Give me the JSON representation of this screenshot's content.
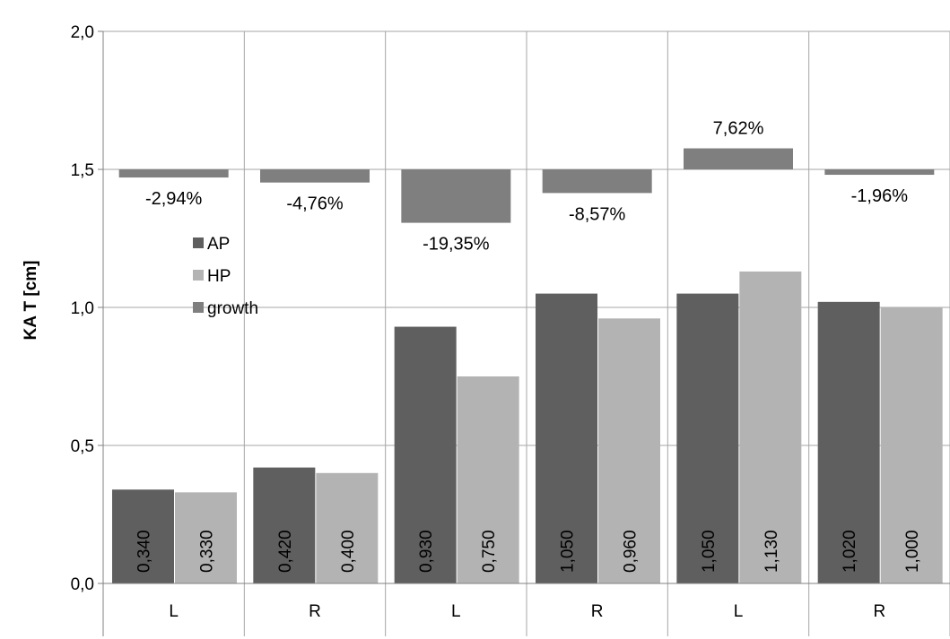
{
  "chart_data": {
    "type": "bar",
    "title": "",
    "xlabel": "",
    "ylabel": "KA T [cm]",
    "ylim": [
      0,
      2
    ],
    "y_ticks": [
      "0,0",
      "0,5",
      "1,0",
      "1,5",
      "2,0"
    ],
    "y_tick_values": [
      0,
      0.5,
      1.0,
      1.5,
      2.0
    ],
    "categories": [
      "L",
      "R",
      "L",
      "R",
      "L",
      "R"
    ],
    "grid": true,
    "legend_position": "left",
    "series": [
      {
        "name": "AP",
        "color": "#5f5f5f",
        "values": [
          0.34,
          0.42,
          0.93,
          1.05,
          1.05,
          1.02
        ],
        "labels": [
          "0,340",
          "0,420",
          "0,930",
          "1,050",
          "1,050",
          "1,020"
        ]
      },
      {
        "name": "HP",
        "color": "#b3b3b3",
        "values": [
          0.33,
          0.4,
          0.75,
          0.96,
          1.13,
          1.0
        ],
        "labels": [
          "0,330",
          "0,400",
          "0,750",
          "0,960",
          "1,130",
          "1,000"
        ]
      },
      {
        "name": "growth",
        "color": "#7f7f7f",
        "baseline": 1.5,
        "values": [
          -2.94,
          -4.76,
          -19.35,
          -8.57,
          7.62,
          -1.96
        ],
        "labels": [
          "-2,94%",
          "-4,76%",
          "-19,35%",
          "-8,57%",
          "7,62%",
          "-1,96%"
        ]
      }
    ]
  }
}
